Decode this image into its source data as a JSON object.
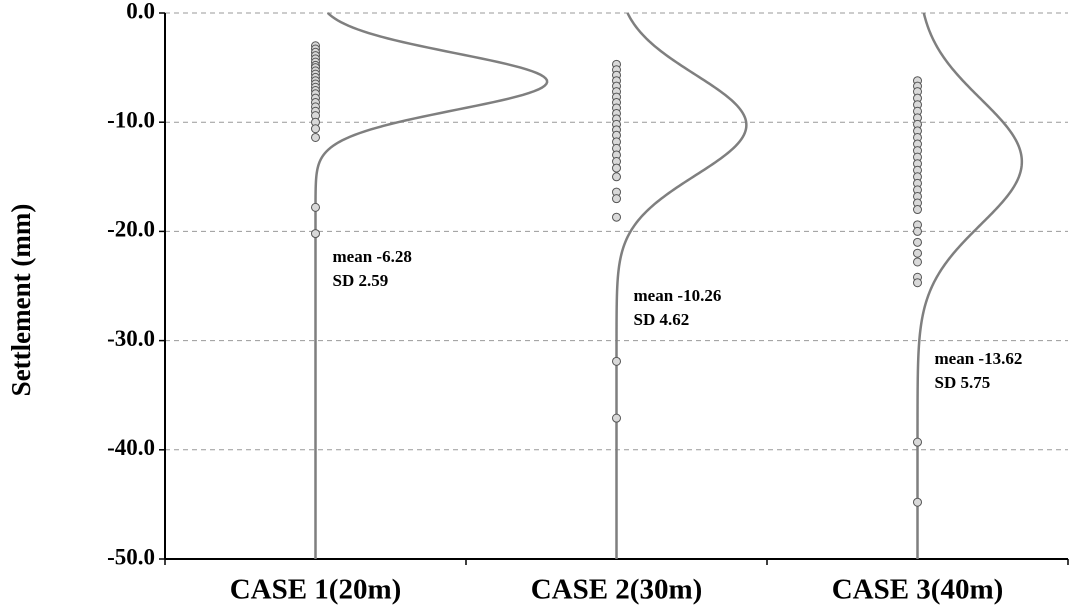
{
  "chart_data": {
    "type": "strip",
    "y_label": "Settlement (mm)",
    "categories": [
      "CASE 1(20m)",
      "CASE 2(30m)",
      "CASE 3(40m)"
    ],
    "ylim": [
      -50,
      0
    ],
    "yticks": [
      {
        "value": 0,
        "label": "0.0"
      },
      {
        "value": -10,
        "label": "-10.0"
      },
      {
        "value": -20,
        "label": "-20.0"
      },
      {
        "value": -30,
        "label": "-30.0"
      },
      {
        "value": -40,
        "label": "-40.0"
      },
      {
        "value": -50,
        "label": "-50.0"
      }
    ],
    "grid": true,
    "point_color": "#d9d9d9",
    "curve_color": "#7f7f7f",
    "groups": [
      {
        "values": [
          -3,
          -3.3,
          -3.6,
          -3.9,
          -4.2,
          -4.5,
          -4.8,
          -5.0,
          -5.3,
          -5.6,
          -5.9,
          -6.2,
          -6.5,
          -6.8,
          -7.1,
          -7.4,
          -7.8,
          -8.2,
          -8.6,
          -9.0,
          -9.4,
          -10.0,
          -10.6,
          -11.4,
          -17.8,
          -20.2
        ],
        "mean": -6.28,
        "sd": 2.59,
        "mean_label": "mean -6.28",
        "sd_label": "SD 2.59"
      },
      {
        "values": [
          -4.7,
          -5.2,
          -5.7,
          -6.2,
          -6.7,
          -7.2,
          -7.7,
          -8.2,
          -8.7,
          -9.2,
          -9.7,
          -10.2,
          -10.7,
          -11.2,
          -11.8,
          -12.4,
          -13.0,
          -13.6,
          -14.2,
          -15.0,
          -16.4,
          -17.0,
          -18.7,
          -31.9,
          -37.1
        ],
        "mean": -10.26,
        "sd": 4.62,
        "mean_label": "mean -10.26",
        "sd_label": "SD 4.62"
      },
      {
        "values": [
          -6.2,
          -6.7,
          -7.2,
          -7.8,
          -8.4,
          -9.0,
          -9.6,
          -10.2,
          -10.8,
          -11.4,
          -12.0,
          -12.6,
          -13.2,
          -13.8,
          -14.4,
          -15.0,
          -15.6,
          -16.2,
          -16.8,
          -17.4,
          -18.0,
          -19.4,
          -20.0,
          -21.0,
          -22.0,
          -22.8,
          -24.2,
          -24.7,
          -39.3,
          -44.8
        ],
        "mean": -13.62,
        "sd": 5.75,
        "mean_label": "mean -13.62",
        "sd_label": "SD 5.75"
      }
    ]
  }
}
